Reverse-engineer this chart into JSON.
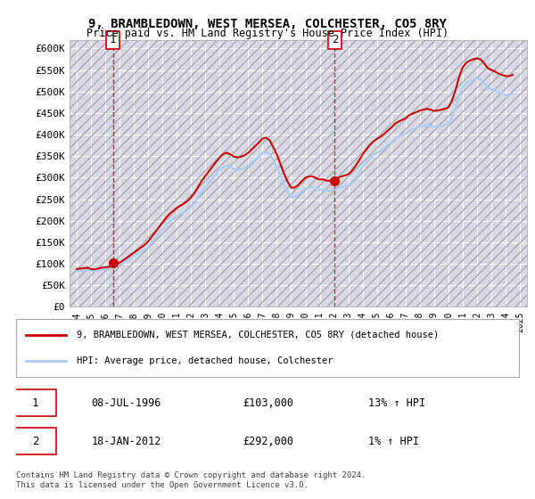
{
  "title": "9, BRAMBLEDOWN, WEST MERSEA, COLCHESTER, CO5 8RY",
  "subtitle": "Price paid vs. HM Land Registry's House Price Index (HPI)",
  "ylabel": "",
  "background_color": "#ffffff",
  "plot_bg_color": "#e8e8f0",
  "grid_color": "#ffffff",
  "hatch_color": "#ccccdd",
  "sale1_date": 1996.53,
  "sale1_price": 103000,
  "sale1_label": "1",
  "sale2_date": 2012.05,
  "sale2_price": 292000,
  "sale2_label": "2",
  "ylim": [
    0,
    620000
  ],
  "xlim": [
    1993.5,
    2025.5
  ],
  "yticks": [
    0,
    50000,
    100000,
    150000,
    200000,
    250000,
    300000,
    350000,
    400000,
    450000,
    500000,
    550000,
    600000
  ],
  "ytick_labels": [
    "£0",
    "£50K",
    "£100K",
    "£150K",
    "£200K",
    "£250K",
    "£300K",
    "£350K",
    "£400K",
    "£450K",
    "£500K",
    "£550K",
    "£600K"
  ],
  "xticks": [
    1994,
    1995,
    1996,
    1997,
    1998,
    1999,
    2000,
    2001,
    2002,
    2003,
    2004,
    2005,
    2006,
    2007,
    2008,
    2009,
    2010,
    2011,
    2012,
    2013,
    2014,
    2015,
    2016,
    2017,
    2018,
    2019,
    2020,
    2021,
    2022,
    2023,
    2024,
    2025
  ],
  "hpi_color": "#aaccff",
  "price_color": "#cc0000",
  "legend_label1": "9, BRAMBLEDOWN, WEST MERSEA, COLCHESTER, CO5 8RY (detached house)",
  "legend_label2": "HPI: Average price, detached house, Colchester",
  "annotation1_date": "08-JUL-1996",
  "annotation1_price": "£103,000",
  "annotation1_hpi": "13% ↑ HPI",
  "annotation2_date": "18-JAN-2012",
  "annotation2_price": "£292,000",
  "annotation2_hpi": "1% ↑ HPI",
  "footer": "Contains HM Land Registry data © Crown copyright and database right 2024.\nThis data is licensed under the Open Government Licence v3.0.",
  "hpi_data_x": [
    1994.0,
    1994.25,
    1994.5,
    1994.75,
    1995.0,
    1995.25,
    1995.5,
    1995.75,
    1996.0,
    1996.25,
    1996.5,
    1996.75,
    1997.0,
    1997.25,
    1997.5,
    1997.75,
    1998.0,
    1998.25,
    1998.5,
    1998.75,
    1999.0,
    1999.25,
    1999.5,
    1999.75,
    2000.0,
    2000.25,
    2000.5,
    2000.75,
    2001.0,
    2001.25,
    2001.5,
    2001.75,
    2002.0,
    2002.25,
    2002.5,
    2002.75,
    2003.0,
    2003.25,
    2003.5,
    2003.75,
    2004.0,
    2004.25,
    2004.5,
    2004.75,
    2005.0,
    2005.25,
    2005.5,
    2005.75,
    2006.0,
    2006.25,
    2006.5,
    2006.75,
    2007.0,
    2007.25,
    2007.5,
    2007.75,
    2008.0,
    2008.25,
    2008.5,
    2008.75,
    2009.0,
    2009.25,
    2009.5,
    2009.75,
    2010.0,
    2010.25,
    2010.5,
    2010.75,
    2011.0,
    2011.25,
    2011.5,
    2011.75,
    2012.0,
    2012.25,
    2012.5,
    2012.75,
    2013.0,
    2013.25,
    2013.5,
    2013.75,
    2014.0,
    2014.25,
    2014.5,
    2014.75,
    2015.0,
    2015.25,
    2015.5,
    2015.75,
    2016.0,
    2016.25,
    2016.5,
    2016.75,
    2017.0,
    2017.25,
    2017.5,
    2017.75,
    2018.0,
    2018.25,
    2018.5,
    2018.75,
    2019.0,
    2019.25,
    2019.5,
    2019.75,
    2020.0,
    2020.25,
    2020.5,
    2020.75,
    2021.0,
    2021.25,
    2021.5,
    2021.75,
    2022.0,
    2022.25,
    2022.5,
    2022.75,
    2023.0,
    2023.25,
    2023.5,
    2023.75,
    2024.0,
    2024.25,
    2024.5
  ],
  "hpi_data_y": [
    83000,
    84000,
    85000,
    86000,
    84000,
    83000,
    85000,
    87000,
    88000,
    89000,
    91000,
    94000,
    98000,
    103000,
    108000,
    113000,
    118000,
    123000,
    128000,
    133000,
    140000,
    150000,
    160000,
    170000,
    180000,
    190000,
    198000,
    205000,
    210000,
    215000,
    220000,
    225000,
    232000,
    242000,
    255000,
    268000,
    278000,
    288000,
    298000,
    308000,
    318000,
    325000,
    328000,
    325000,
    320000,
    318000,
    320000,
    323000,
    328000,
    335000,
    342000,
    350000,
    358000,
    360000,
    355000,
    340000,
    325000,
    305000,
    285000,
    268000,
    255000,
    255000,
    260000,
    268000,
    275000,
    278000,
    278000,
    275000,
    272000,
    272000,
    270000,
    270000,
    272000,
    275000,
    278000,
    280000,
    283000,
    290000,
    300000,
    312000,
    325000,
    335000,
    345000,
    352000,
    358000,
    362000,
    368000,
    375000,
    382000,
    390000,
    395000,
    398000,
    402000,
    408000,
    412000,
    415000,
    418000,
    420000,
    422000,
    420000,
    418000,
    418000,
    420000,
    422000,
    425000,
    440000,
    462000,
    490000,
    510000,
    520000,
    525000,
    528000,
    530000,
    528000,
    520000,
    510000,
    505000,
    502000,
    498000,
    495000,
    492000,
    492000,
    495000
  ],
  "price_data_x": [
    1994.0,
    1994.25,
    1994.5,
    1994.75,
    1995.0,
    1995.25,
    1995.5,
    1995.75,
    1996.0,
    1996.25,
    1996.5,
    1996.75,
    1997.0,
    1997.25,
    1997.5,
    1997.75,
    1998.0,
    1998.25,
    1998.5,
    1998.75,
    1999.0,
    1999.25,
    1999.5,
    1999.75,
    2000.0,
    2000.25,
    2000.5,
    2000.75,
    2001.0,
    2001.25,
    2001.5,
    2001.75,
    2002.0,
    2002.25,
    2002.5,
    2002.75,
    2003.0,
    2003.25,
    2003.5,
    2003.75,
    2004.0,
    2004.25,
    2004.5,
    2004.75,
    2005.0,
    2005.25,
    2005.5,
    2005.75,
    2006.0,
    2006.25,
    2006.5,
    2006.75,
    2007.0,
    2007.25,
    2007.5,
    2007.75,
    2008.0,
    2008.25,
    2008.5,
    2008.75,
    2009.0,
    2009.25,
    2009.5,
    2009.75,
    2010.0,
    2010.25,
    2010.5,
    2010.75,
    2011.0,
    2011.25,
    2011.5,
    2011.75,
    2012.0,
    2012.25,
    2012.5,
    2012.75,
    2013.0,
    2013.25,
    2013.5,
    2013.75,
    2014.0,
    2014.25,
    2014.5,
    2014.75,
    2015.0,
    2015.25,
    2015.5,
    2015.75,
    2016.0,
    2016.25,
    2016.5,
    2016.75,
    2017.0,
    2017.25,
    2017.5,
    2017.75,
    2018.0,
    2018.25,
    2018.5,
    2018.75,
    2019.0,
    2019.25,
    2019.5,
    2019.75,
    2020.0,
    2020.25,
    2020.5,
    2020.75,
    2021.0,
    2021.25,
    2021.5,
    2021.75,
    2022.0,
    2022.25,
    2022.5,
    2022.75,
    2023.0,
    2023.25,
    2023.5,
    2023.75,
    2024.0,
    2024.25,
    2024.5
  ],
  "price_data_y": [
    88000,
    89000,
    90000,
    91000,
    88000,
    87000,
    89000,
    91000,
    92000,
    93000,
    95000,
    98000,
    103000,
    108000,
    114000,
    120000,
    126000,
    132000,
    138000,
    144000,
    152000,
    163000,
    174000,
    185000,
    196000,
    207000,
    216000,
    223000,
    230000,
    235000,
    240000,
    246000,
    254000,
    265000,
    279000,
    293000,
    304000,
    315000,
    326000,
    337000,
    347000,
    355000,
    358000,
    354000,
    349000,
    347000,
    349000,
    352000,
    358000,
    366000,
    374000,
    382000,
    391000,
    393000,
    387000,
    371000,
    354000,
    332000,
    310000,
    291000,
    277000,
    277000,
    283000,
    292000,
    300000,
    303000,
    303000,
    299000,
    296000,
    296000,
    293000,
    293000,
    295000,
    299000,
    303000,
    305000,
    308000,
    316000,
    327000,
    340000,
    354000,
    365000,
    376000,
    384000,
    390000,
    395000,
    401000,
    409000,
    416000,
    425000,
    430000,
    434000,
    438000,
    445000,
    449000,
    452000,
    456000,
    458000,
    460000,
    458000,
    455000,
    456000,
    458000,
    460000,
    463000,
    479000,
    503000,
    534000,
    556000,
    567000,
    572000,
    575000,
    577000,
    575000,
    566000,
    555000,
    550000,
    547000,
    542000,
    539000,
    536000,
    536000,
    539000
  ]
}
